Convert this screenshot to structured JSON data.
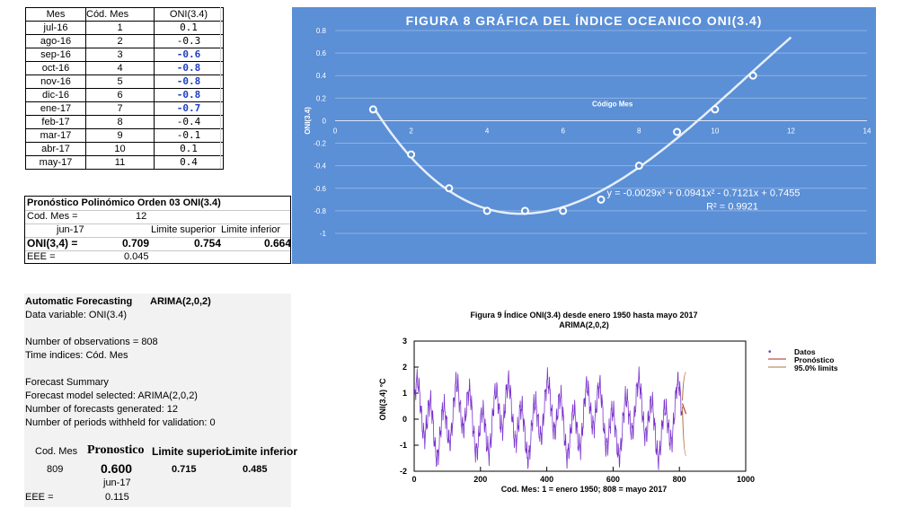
{
  "table": {
    "headers": [
      "Mes",
      "Cód. Mes",
      "ONI(3.4)"
    ],
    "rows": [
      [
        "jul-16",
        "1",
        "0.1"
      ],
      [
        "ago-16",
        "2",
        "-0.3"
      ],
      [
        "sep-16",
        "3",
        "-0.6"
      ],
      [
        "oct-16",
        "4",
        "-0.8"
      ],
      [
        "nov-16",
        "5",
        "-0.8"
      ],
      [
        "dic-16",
        "6",
        "-0.8"
      ],
      [
        "ene-17",
        "7",
        "-0.7"
      ],
      [
        "feb-17",
        "8",
        "-0.4"
      ],
      [
        "mar-17",
        "9",
        "-0.1"
      ],
      [
        "abr-17",
        "10",
        "0.1"
      ],
      [
        "may-17",
        "11",
        "0.4"
      ]
    ]
  },
  "poly_forecast": {
    "title": "Pronóstico Polinómico Orden 03 ONI(3.4)",
    "cod_mes_label": "Cod. Mes =",
    "cod_mes_value": "12",
    "month": "jun-17",
    "upper_label": "Limite superior",
    "lower_label": "Limite inferior",
    "oni_label": "ONI(3,4) =",
    "oni_value": "0.709",
    "upper_value": "0.754",
    "lower_value": "0.664",
    "eee_label": "EEE =",
    "eee_value": "0.045"
  },
  "arima": {
    "lines": [
      "Data variable: ONI(3.4)",
      "",
      "Number of observations = 808",
      "Time indices: Cód. Mes",
      "",
      "Forecast Summary",
      "Forecast model selected: ARIMA(2,0,2)",
      "Number of forecasts generated: 12",
      "Number of periods withheld for validation: 0"
    ],
    "title_left": "Automatic Forecasting",
    "title_right": "ARIMA(2,0,2)",
    "col_headers": [
      "Cod. Mes",
      "Pronostico",
      "Limite superior",
      "Limite inferior"
    ],
    "values": [
      "809",
      "0.600",
      "0.715",
      "0.485"
    ],
    "month": "jun-17",
    "eee_label": "EEE =",
    "eee_value": "0.115"
  },
  "chart_data": [
    {
      "type": "scatter",
      "title": "FIGURA 8          GRÁFICA DEL ÍNDICE OCEANICO ONI(3.4)",
      "xlabel": "Código Mes",
      "ylabel": "ONI(3.4)",
      "xlim": [
        0,
        14
      ],
      "ylim": [
        -1,
        0.8
      ],
      "xticks": [
        0,
        2,
        4,
        6,
        8,
        10,
        12,
        14
      ],
      "yticks": [
        -1,
        -0.8,
        -0.6,
        -0.4,
        -0.2,
        0,
        0.2,
        0.4,
        0.6,
        0.8
      ],
      "x": [
        1,
        2,
        3,
        4,
        5,
        6,
        7,
        8,
        9,
        10,
        11
      ],
      "y": [
        0.1,
        -0.3,
        -0.6,
        -0.8,
        -0.8,
        -0.8,
        -0.7,
        -0.4,
        -0.1,
        0.1,
        0.4
      ],
      "trendline": {
        "kind": "polynomial-3",
        "coefficients": [
          -0.0029,
          0.0941,
          -0.7121,
          0.7455
        ],
        "x_range": [
          1,
          12
        ],
        "equation_text": "y = -0.0029x³ + 0.0941x² - 0.7121x + 0.7455",
        "r2_text": "R² = 0.9921"
      },
      "background_color": "#5b8fd6",
      "grid": true
    },
    {
      "type": "line",
      "title": "Figura 9 Índice ONI(3.4) desde enero 1950 hasta mayo 2017",
      "subtitle": "ARIMA(2,0,2)",
      "xlabel": "Cod. Mes:  1 = enero 1950;  808 = mayo 2017",
      "ylabel": "ONI(3.4) °C",
      "xlim": [
        0,
        1000
      ],
      "ylim": [
        -2,
        3
      ],
      "xticks": [
        0,
        200,
        400,
        600,
        800,
        1000
      ],
      "yticks": [
        -2,
        -1,
        0,
        1,
        2,
        3
      ],
      "legend": [
        "Datos",
        "Pronóstico",
        "95.0% limits"
      ],
      "legend_position": "right",
      "series_colors": {
        "data": "#7a33cc",
        "forecast": "#b02020",
        "limits": "#b07040"
      },
      "series_note": "808 monthly observations; exact values not legible at this resolution",
      "forecast": {
        "x": [
          809,
          820
        ],
        "y": [
          0.6,
          0.2
        ]
      },
      "limits": {
        "x": [
          809,
          820
        ],
        "upper": [
          0.715,
          1.8
        ],
        "lower": [
          0.485,
          -1.4
        ]
      }
    }
  ]
}
